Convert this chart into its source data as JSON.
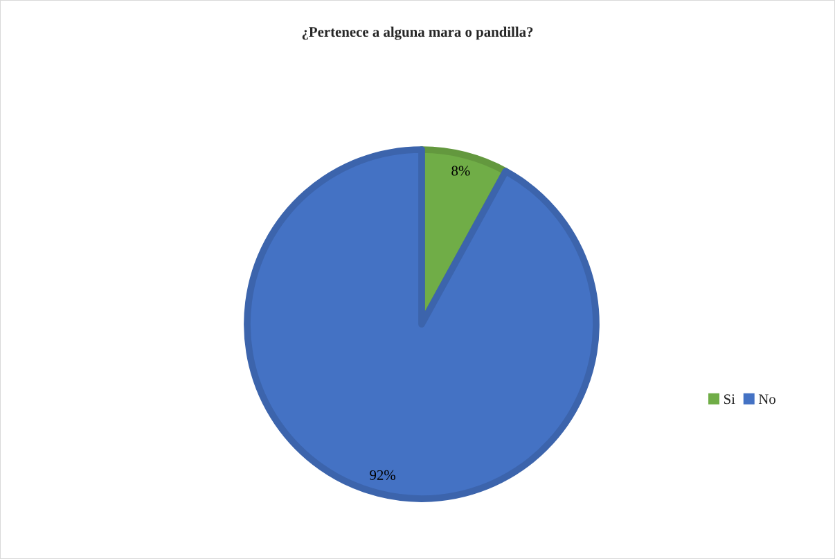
{
  "chart_data": {
    "type": "pie",
    "title": "¿Pertenece a alguna mara o pandilla?",
    "categories": [
      "Si",
      "No"
    ],
    "values": [
      8,
      92
    ],
    "colors": [
      "#70ad47",
      "#4472c4"
    ],
    "value_labels": [
      "8%",
      "92%"
    ],
    "legend": "right"
  }
}
